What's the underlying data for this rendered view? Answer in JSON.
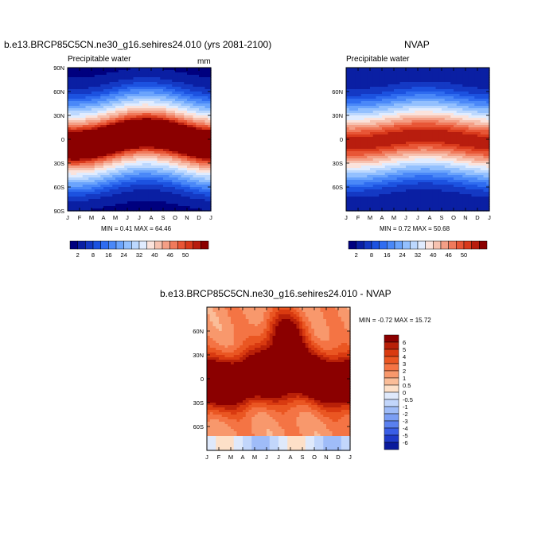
{
  "chart_data": [
    {
      "type": "heatmap",
      "title": "b.e13.BRCP85C5CN.ne30_g16.sehires24.010 (yrs 2081-2100)",
      "subtitle_left": "Precipitable water",
      "subtitle_right": "mm",
      "minmax": "MIN =   0.41 MAX =  64.46",
      "x_ticks": [
        "J",
        "F",
        "M",
        "A",
        "M",
        "J",
        "J",
        "A",
        "S",
        "O",
        "N",
        "D",
        "J"
      ],
      "y_ticks": [
        "90N",
        "60N",
        "30N",
        "0",
        "30S",
        "60S",
        "90S"
      ],
      "colorbar_labels": [
        "2",
        "8",
        "16",
        "24",
        "32",
        "40",
        "46",
        "50"
      ],
      "ylim": [
        -90,
        90
      ]
    },
    {
      "type": "heatmap",
      "title": "NVAP",
      "subtitle_left": "Precipitable water",
      "minmax": "MIN =   0.72 MAX =  50.68",
      "x_ticks": [
        "J",
        "F",
        "M",
        "A",
        "M",
        "J",
        "J",
        "A",
        "S",
        "O",
        "N",
        "D",
        "J"
      ],
      "y_ticks": [
        "60N",
        "30N",
        "0",
        "30S",
        "60S"
      ],
      "colorbar_labels": [
        "2",
        "8",
        "16",
        "24",
        "32",
        "40",
        "46",
        "50"
      ]
    },
    {
      "type": "heatmap",
      "title": "b.e13.BRCP85C5CN.ne30_g16.sehires24.010 - NVAP",
      "minmax": "MIN =  -0.72 MAX =  15.72",
      "x_ticks": [
        "J",
        "F",
        "M",
        "A",
        "M",
        "J",
        "J",
        "A",
        "S",
        "O",
        "N",
        "D",
        "J"
      ],
      "y_ticks": [
        "60N",
        "30N",
        "0",
        "30S",
        "60S"
      ],
      "colorbar_labels": [
        "6",
        "5",
        "4",
        "3",
        "2",
        "1",
        "0.5",
        "0",
        "-0.5",
        "-1",
        "-2",
        "-3",
        "-4",
        "-5",
        "-6"
      ]
    }
  ],
  "colors": {
    "abs_scale": [
      "#00007f",
      "#0a1fa3",
      "#1439c4",
      "#1c52e0",
      "#2f6cf0",
      "#4a88f8",
      "#6ba4fc",
      "#93c0fe",
      "#bcd8fe",
      "#e0ecff",
      "#fbe3dc",
      "#f7c2b0",
      "#f49f86",
      "#f07a5c",
      "#e85636",
      "#d93a1c",
      "#b81d0e",
      "#8b0000"
    ],
    "diff_scale": [
      "#8b0000",
      "#b82008",
      "#d93a10",
      "#ea5622",
      "#f47444",
      "#f8986c",
      "#fabd98",
      "#fde0c8",
      "#dfe9fb",
      "#c2d6fb",
      "#9fbcf8",
      "#7b9ef4",
      "#5a80ef",
      "#3a5ee6",
      "#1f3ac9",
      "#0a1a9c"
    ]
  }
}
